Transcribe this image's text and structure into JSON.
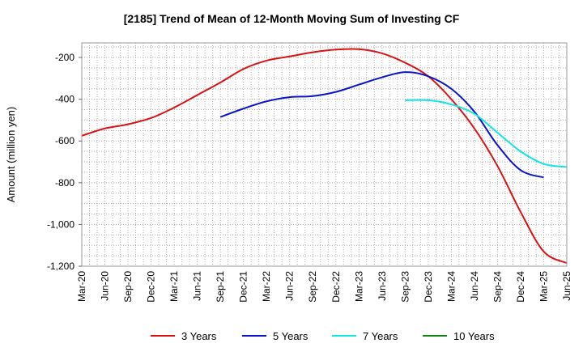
{
  "chart_data": {
    "type": "line",
    "title": "[2185]  Trend of Mean of 12-Month Moving Sum of Investing CF",
    "xlabel": "",
    "ylabel": "Amount (million yen)",
    "ylim": [
      -1200,
      -130
    ],
    "yticks": [
      -200,
      -400,
      -600,
      -800,
      -1000,
      -1200
    ],
    "ytick_labels": [
      "-200",
      "-400",
      "-600",
      "-800",
      "-1,000",
      "-1,200"
    ],
    "grid": true,
    "legend_position": "bottom",
    "x_categories": [
      "Mar-20",
      "Jun-20",
      "Sep-20",
      "Dec-20",
      "Mar-21",
      "Jun-21",
      "Sep-21",
      "Dec-21",
      "Mar-22",
      "Jun-22",
      "Sep-22",
      "Dec-22",
      "Mar-23",
      "Jun-23",
      "Sep-23",
      "Dec-23",
      "Mar-24",
      "Jun-24",
      "Sep-24",
      "Dec-24",
      "Mar-25",
      "Jun-25"
    ],
    "series": [
      {
        "name": "3 Years",
        "color": "#dd1111",
        "start_index": 0,
        "values": [
          -575,
          -540,
          -520,
          -490,
          -440,
          -380,
          -320,
          -255,
          -215,
          -195,
          -175,
          -162,
          -160,
          -180,
          -225,
          -290,
          -400,
          -540,
          -720,
          -940,
          -1130,
          -1185
        ]
      },
      {
        "name": "5 Years",
        "color": "#0a14c8",
        "start_index": 6,
        "values": [
          -485,
          -445,
          -410,
          -390,
          -385,
          -365,
          -330,
          -295,
          -270,
          -290,
          -350,
          -460,
          -620,
          -740,
          -775
        ]
      },
      {
        "name": "7 Years",
        "color": "#11e6e6",
        "start_index": 14,
        "values": [
          -405,
          -405,
          -425,
          -470,
          -560,
          -650,
          -710,
          -725
        ]
      },
      {
        "name": "10 Years",
        "color": "#118811",
        "start_index": 0,
        "values": []
      }
    ]
  }
}
